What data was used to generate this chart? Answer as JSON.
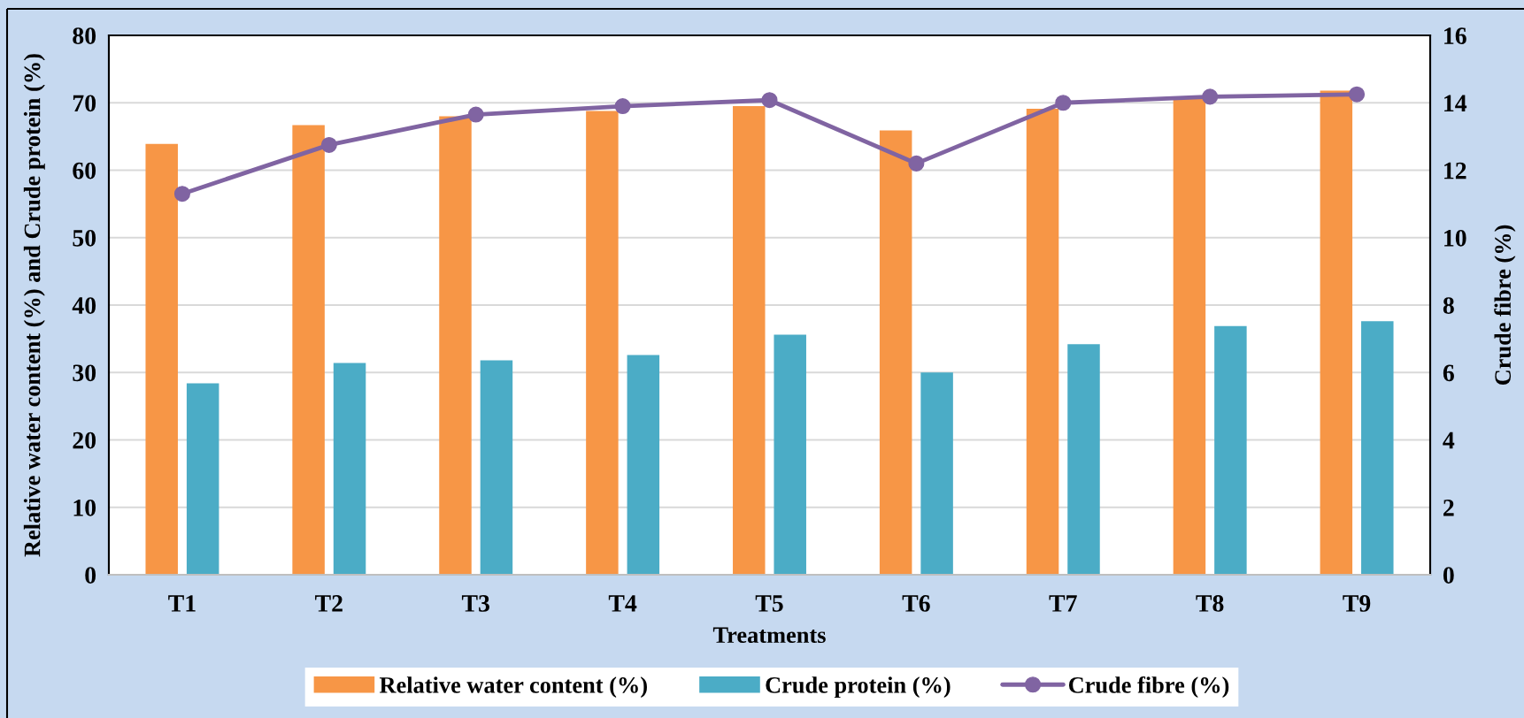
{
  "chart_data": {
    "type": "bar",
    "categories": [
      "T1",
      "T2",
      "T3",
      "T4",
      "T5",
      "T6",
      "T7",
      "T8",
      "T9"
    ],
    "xlabel": "Treatments",
    "ylabel": "Relative water content (%) and Crude protein (%)",
    "y2label": "Crude fibre (%)",
    "series": [
      {
        "name": "Relative water content (%)",
        "color": "#f79646",
        "values": [
          63.9,
          66.7,
          68.0,
          68.8,
          69.5,
          65.9,
          69.1,
          70.7,
          71.8
        ]
      },
      {
        "name": "Crude protein (%)",
        "color": "#4bacc6",
        "values": [
          28.4,
          31.4,
          31.8,
          32.6,
          35.6,
          30.0,
          34.2,
          36.9,
          37.6
        ]
      },
      {
        "name": "Crude fibre (%)",
        "type": "line",
        "axis": "y2",
        "color": "#8064a2",
        "marker": "circle",
        "values": [
          11.3,
          12.75,
          13.65,
          13.9,
          14.08,
          12.2,
          14.0,
          14.18,
          14.25
        ]
      }
    ],
    "ylim": [
      0,
      80
    ],
    "yticks": [
      0,
      10,
      20,
      30,
      40,
      50,
      60,
      70,
      80
    ],
    "y2lim": [
      0,
      16
    ],
    "y2ticks": [
      0,
      2,
      4,
      6,
      8,
      10,
      12,
      14,
      16
    ],
    "grid": "y",
    "legend": "bottom"
  }
}
